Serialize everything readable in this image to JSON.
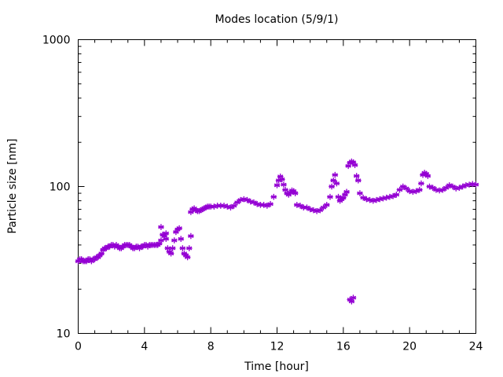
{
  "chart_data": {
    "type": "scatter",
    "title": "Modes location (5/9/1)",
    "xlabel": "Time [hour]",
    "ylabel": "Particle size [nm]",
    "xlim": [
      0,
      24
    ],
    "ylim": [
      10,
      1000
    ],
    "yscale": "log",
    "xticks": [
      0,
      4,
      8,
      12,
      16,
      20,
      24
    ],
    "yticks": [
      10,
      100,
      1000
    ],
    "xtick_labels": [
      "0",
      "4",
      "8",
      "12",
      "16",
      "20",
      "24"
    ],
    "ytick_labels": [
      "10",
      "100",
      "1000"
    ],
    "grid": false,
    "legend": "none",
    "marker_color": "#9400d3",
    "marker": "asterisk",
    "series": [
      {
        "points": [
          [
            0.0,
            31
          ],
          [
            0.1,
            32
          ],
          [
            0.2,
            32
          ],
          [
            0.3,
            31
          ],
          [
            0.4,
            31
          ],
          [
            0.5,
            31
          ],
          [
            0.6,
            32
          ],
          [
            0.7,
            32
          ],
          [
            0.8,
            31
          ],
          [
            0.9,
            32
          ],
          [
            1.0,
            32
          ],
          [
            1.1,
            33
          ],
          [
            1.2,
            33
          ],
          [
            1.3,
            34
          ],
          [
            1.4,
            35
          ],
          [
            1.5,
            37
          ],
          [
            1.6,
            38
          ],
          [
            1.7,
            38
          ],
          [
            1.8,
            39
          ],
          [
            1.9,
            39
          ],
          [
            2.0,
            40
          ],
          [
            2.1,
            40
          ],
          [
            2.2,
            39
          ],
          [
            2.3,
            40
          ],
          [
            2.4,
            39
          ],
          [
            2.5,
            38
          ],
          [
            2.6,
            38
          ],
          [
            2.7,
            39
          ],
          [
            2.8,
            40
          ],
          [
            2.9,
            40
          ],
          [
            3.0,
            40
          ],
          [
            3.1,
            40
          ],
          [
            3.2,
            39
          ],
          [
            3.3,
            38
          ],
          [
            3.4,
            38
          ],
          [
            3.5,
            39
          ],
          [
            3.6,
            39
          ],
          [
            3.7,
            38
          ],
          [
            3.8,
            39
          ],
          [
            3.9,
            39
          ],
          [
            4.0,
            40
          ],
          [
            4.1,
            40
          ],
          [
            4.2,
            39
          ],
          [
            4.3,
            40
          ],
          [
            4.4,
            40
          ],
          [
            4.5,
            40
          ],
          [
            4.6,
            40
          ],
          [
            4.7,
            40
          ],
          [
            4.8,
            40
          ],
          [
            4.9,
            41
          ],
          [
            5.0,
            43
          ],
          [
            5.0,
            53
          ],
          [
            5.1,
            47
          ],
          [
            5.2,
            46
          ],
          [
            5.3,
            44
          ],
          [
            5.3,
            48
          ],
          [
            5.4,
            38
          ],
          [
            5.5,
            36
          ],
          [
            5.6,
            35
          ],
          [
            5.7,
            38
          ],
          [
            5.8,
            43
          ],
          [
            5.9,
            49
          ],
          [
            6.0,
            51
          ],
          [
            6.1,
            52
          ],
          [
            6.2,
            44
          ],
          [
            6.3,
            38
          ],
          [
            6.4,
            35
          ],
          [
            6.5,
            34
          ],
          [
            6.6,
            33
          ],
          [
            6.7,
            38
          ],
          [
            6.8,
            46
          ],
          [
            6.8,
            67
          ],
          [
            6.9,
            70
          ],
          [
            7.0,
            71
          ],
          [
            7.1,
            69
          ],
          [
            7.2,
            68
          ],
          [
            7.3,
            68
          ],
          [
            7.4,
            69
          ],
          [
            7.5,
            70
          ],
          [
            7.6,
            71
          ],
          [
            7.7,
            72
          ],
          [
            7.8,
            73
          ],
          [
            7.9,
            73
          ],
          [
            8.0,
            73
          ],
          [
            8.2,
            73
          ],
          [
            8.4,
            74
          ],
          [
            8.6,
            74
          ],
          [
            8.8,
            74
          ],
          [
            9.0,
            73
          ],
          [
            9.2,
            72
          ],
          [
            9.4,
            74
          ],
          [
            9.6,
            78
          ],
          [
            9.8,
            81
          ],
          [
            10.0,
            82
          ],
          [
            10.2,
            81
          ],
          [
            10.4,
            79
          ],
          [
            10.6,
            78
          ],
          [
            10.8,
            76
          ],
          [
            11.0,
            75
          ],
          [
            11.2,
            75
          ],
          [
            11.4,
            74
          ],
          [
            11.6,
            76
          ],
          [
            11.8,
            85
          ],
          [
            12.0,
            102
          ],
          [
            12.1,
            110
          ],
          [
            12.2,
            117
          ],
          [
            12.3,
            112
          ],
          [
            12.4,
            103
          ],
          [
            12.5,
            95
          ],
          [
            12.6,
            90
          ],
          [
            12.7,
            88
          ],
          [
            12.8,
            91
          ],
          [
            12.9,
            94
          ],
          [
            13.0,
            93
          ],
          [
            13.1,
            90
          ],
          [
            13.2,
            75
          ],
          [
            13.4,
            74
          ],
          [
            13.6,
            72
          ],
          [
            13.8,
            72
          ],
          [
            14.0,
            70
          ],
          [
            14.2,
            69
          ],
          [
            14.4,
            68
          ],
          [
            14.6,
            69
          ],
          [
            14.8,
            72
          ],
          [
            15.0,
            75
          ],
          [
            15.2,
            85
          ],
          [
            15.3,
            100
          ],
          [
            15.4,
            110
          ],
          [
            15.5,
            120
          ],
          [
            15.6,
            105
          ],
          [
            15.7,
            85
          ],
          [
            15.8,
            80
          ],
          [
            15.9,
            82
          ],
          [
            16.0,
            84
          ],
          [
            16.1,
            88
          ],
          [
            16.2,
            92
          ],
          [
            16.3,
            138
          ],
          [
            16.4,
            145
          ],
          [
            16.5,
            148
          ],
          [
            16.6,
            146
          ],
          [
            16.7,
            140
          ],
          [
            16.4,
            17
          ],
          [
            16.5,
            16.5
          ],
          [
            16.6,
            17.5
          ],
          [
            16.8,
            118
          ],
          [
            16.9,
            110
          ],
          [
            17.0,
            90
          ],
          [
            17.2,
            84
          ],
          [
            17.4,
            82
          ],
          [
            17.6,
            81
          ],
          [
            17.8,
            80
          ],
          [
            18.0,
            81
          ],
          [
            18.2,
            82
          ],
          [
            18.4,
            83
          ],
          [
            18.6,
            84
          ],
          [
            18.8,
            85
          ],
          [
            19.0,
            86
          ],
          [
            19.2,
            88
          ],
          [
            19.4,
            95
          ],
          [
            19.6,
            100
          ],
          [
            19.8,
            97
          ],
          [
            20.0,
            93
          ],
          [
            20.2,
            92
          ],
          [
            20.4,
            93
          ],
          [
            20.6,
            95
          ],
          [
            20.7,
            105
          ],
          [
            20.8,
            120
          ],
          [
            20.9,
            124
          ],
          [
            21.0,
            122
          ],
          [
            21.1,
            118
          ],
          [
            21.2,
            100
          ],
          [
            21.4,
            98
          ],
          [
            21.6,
            95
          ],
          [
            21.8,
            94
          ],
          [
            22.0,
            95
          ],
          [
            22.2,
            98
          ],
          [
            22.4,
            102
          ],
          [
            22.6,
            100
          ],
          [
            22.8,
            97
          ],
          [
            23.0,
            98
          ],
          [
            23.2,
            100
          ],
          [
            23.4,
            102
          ],
          [
            23.6,
            103
          ],
          [
            23.8,
            104
          ],
          [
            24.0,
            103
          ]
        ]
      }
    ]
  }
}
